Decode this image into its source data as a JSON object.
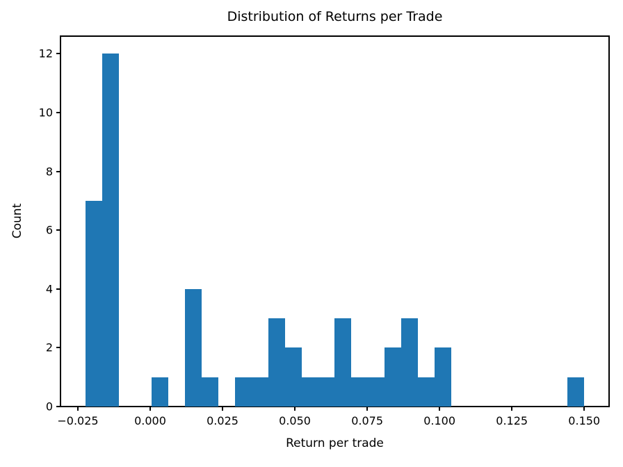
{
  "figure": {
    "background": "#ffffff"
  },
  "chart_data": {
    "type": "bar",
    "subtype": "histogram",
    "title": "Distribution of Returns per Trade",
    "xlabel": "Return per trade",
    "ylabel": "Count",
    "bar_color": "#1f77b4",
    "axis_color": "#000000",
    "grid": false,
    "legend_position": "none",
    "xlim": [
      -0.031,
      0.1586
    ],
    "ylim": [
      0,
      12.6
    ],
    "bin_edges": [
      -0.02243,
      -0.01668,
      -0.01093,
      -0.00519,
      0.00056,
      0.00631,
      0.01206,
      0.0178,
      0.02355,
      0.0293,
      0.03505,
      0.0408,
      0.04654,
      0.05229,
      0.05804,
      0.06379,
      0.06953,
      0.07528,
      0.08103,
      0.08678,
      0.09253,
      0.09827,
      0.10402,
      0.10977,
      0.11552,
      0.12126,
      0.12701,
      0.13276,
      0.13851,
      0.14425,
      0.15
    ],
    "counts": [
      7,
      12,
      0,
      0,
      1,
      0,
      4,
      1,
      0,
      1,
      1,
      3,
      2,
      1,
      1,
      3,
      1,
      1,
      2,
      3,
      1,
      2,
      0,
      0,
      0,
      0,
      0,
      0,
      0,
      1
    ],
    "xticks": {
      "values": [
        -0.025,
        0.0,
        0.025,
        0.05,
        0.075,
        0.1,
        0.125,
        0.15
      ],
      "labels": [
        "−0.025",
        "0.000",
        "0.025",
        "0.050",
        "0.075",
        "0.100",
        "0.125",
        "0.150"
      ]
    },
    "yticks": {
      "values": [
        0,
        2,
        4,
        6,
        8,
        10,
        12
      ],
      "labels": [
        "0",
        "2",
        "4",
        "6",
        "8",
        "10",
        "12"
      ]
    }
  }
}
